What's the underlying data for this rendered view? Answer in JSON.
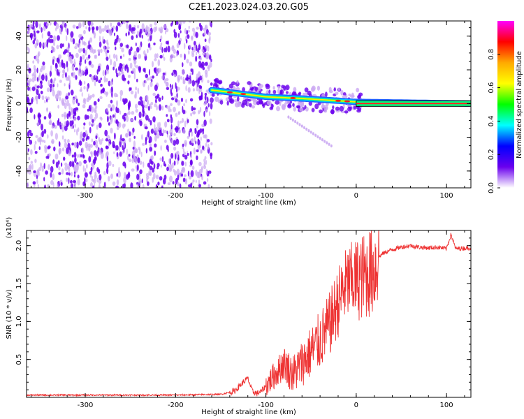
{
  "title": "C2E1.2023.024.03.20.G05",
  "colors": {
    "snr_line": "#ee3333",
    "spectrum_scatter": "#6a00ee",
    "spectrum_light": "#caa8f2",
    "spectrum_band": "#2060ff"
  },
  "chart_data": [
    {
      "type": "heatmap",
      "xlabel": "Height of straight line (km)",
      "ylabel": "Frequency (Hz)",
      "xlim": [
        -365,
        127
      ],
      "ylim": [
        -50,
        49
      ],
      "xticks": [
        -300,
        -200,
        -100,
        0,
        100
      ],
      "yticks": [
        -40,
        -20,
        0,
        20,
        40
      ],
      "grid": false,
      "colorbar": {
        "label": "Normalized spectral amplitude",
        "range": [
          0.0,
          1.0
        ],
        "ticks": [
          0.0,
          0.2,
          0.4,
          0.6,
          0.8
        ],
        "colormap": [
          "#ff00ff",
          "#ff0000",
          "#ffaa00",
          "#ffff00",
          "#00ff00",
          "#00ffff",
          "#0000ff",
          "#6a00ee",
          "#ffffff"
        ]
      },
      "features": {
        "noise_region_x": [
          -365,
          -160
        ],
        "band_center": [
          [
            -160,
            8
          ],
          [
            -130,
            6
          ],
          [
            -100,
            4
          ],
          [
            -60,
            3
          ],
          [
            -30,
            2
          ],
          [
            0,
            1
          ],
          [
            127,
            0
          ]
        ]
      }
    },
    {
      "type": "line",
      "xlabel": "Height of straight line (km)",
      "ylabel": "SNR (10 * v/v)",
      "scale_label": "(x10⁴)",
      "xlim": [
        -365,
        127
      ],
      "ylim": [
        0.0,
        2.2
      ],
      "xticks": [
        -300,
        -200,
        -100,
        0,
        100
      ],
      "yticks": [
        0.5,
        1.0,
        1.5,
        2.0
      ],
      "grid": false,
      "series": [
        {
          "x": [
            -365,
            -300,
            -250,
            -200,
            -150,
            -135,
            -125,
            -120,
            -115,
            -110,
            -105,
            -100,
            -90,
            -80,
            -70,
            -60,
            -50,
            -40,
            -30,
            -20,
            -15,
            -10,
            0,
            10,
            20,
            25,
            30,
            40,
            50,
            60,
            70,
            80,
            90,
            100,
            105,
            110,
            127
          ],
          "y": [
            0.03,
            0.03,
            0.03,
            0.03,
            0.04,
            0.08,
            0.2,
            0.25,
            0.08,
            0.05,
            0.08,
            0.15,
            0.3,
            0.45,
            0.3,
            0.45,
            0.6,
            0.75,
            0.95,
            1.25,
            1.4,
            1.5,
            1.55,
            1.6,
            1.7,
            1.85,
            1.9,
            1.95,
            1.98,
            2.0,
            1.98,
            1.97,
            1.98,
            1.96,
            2.15,
            1.96,
            1.97
          ]
        }
      ]
    }
  ]
}
